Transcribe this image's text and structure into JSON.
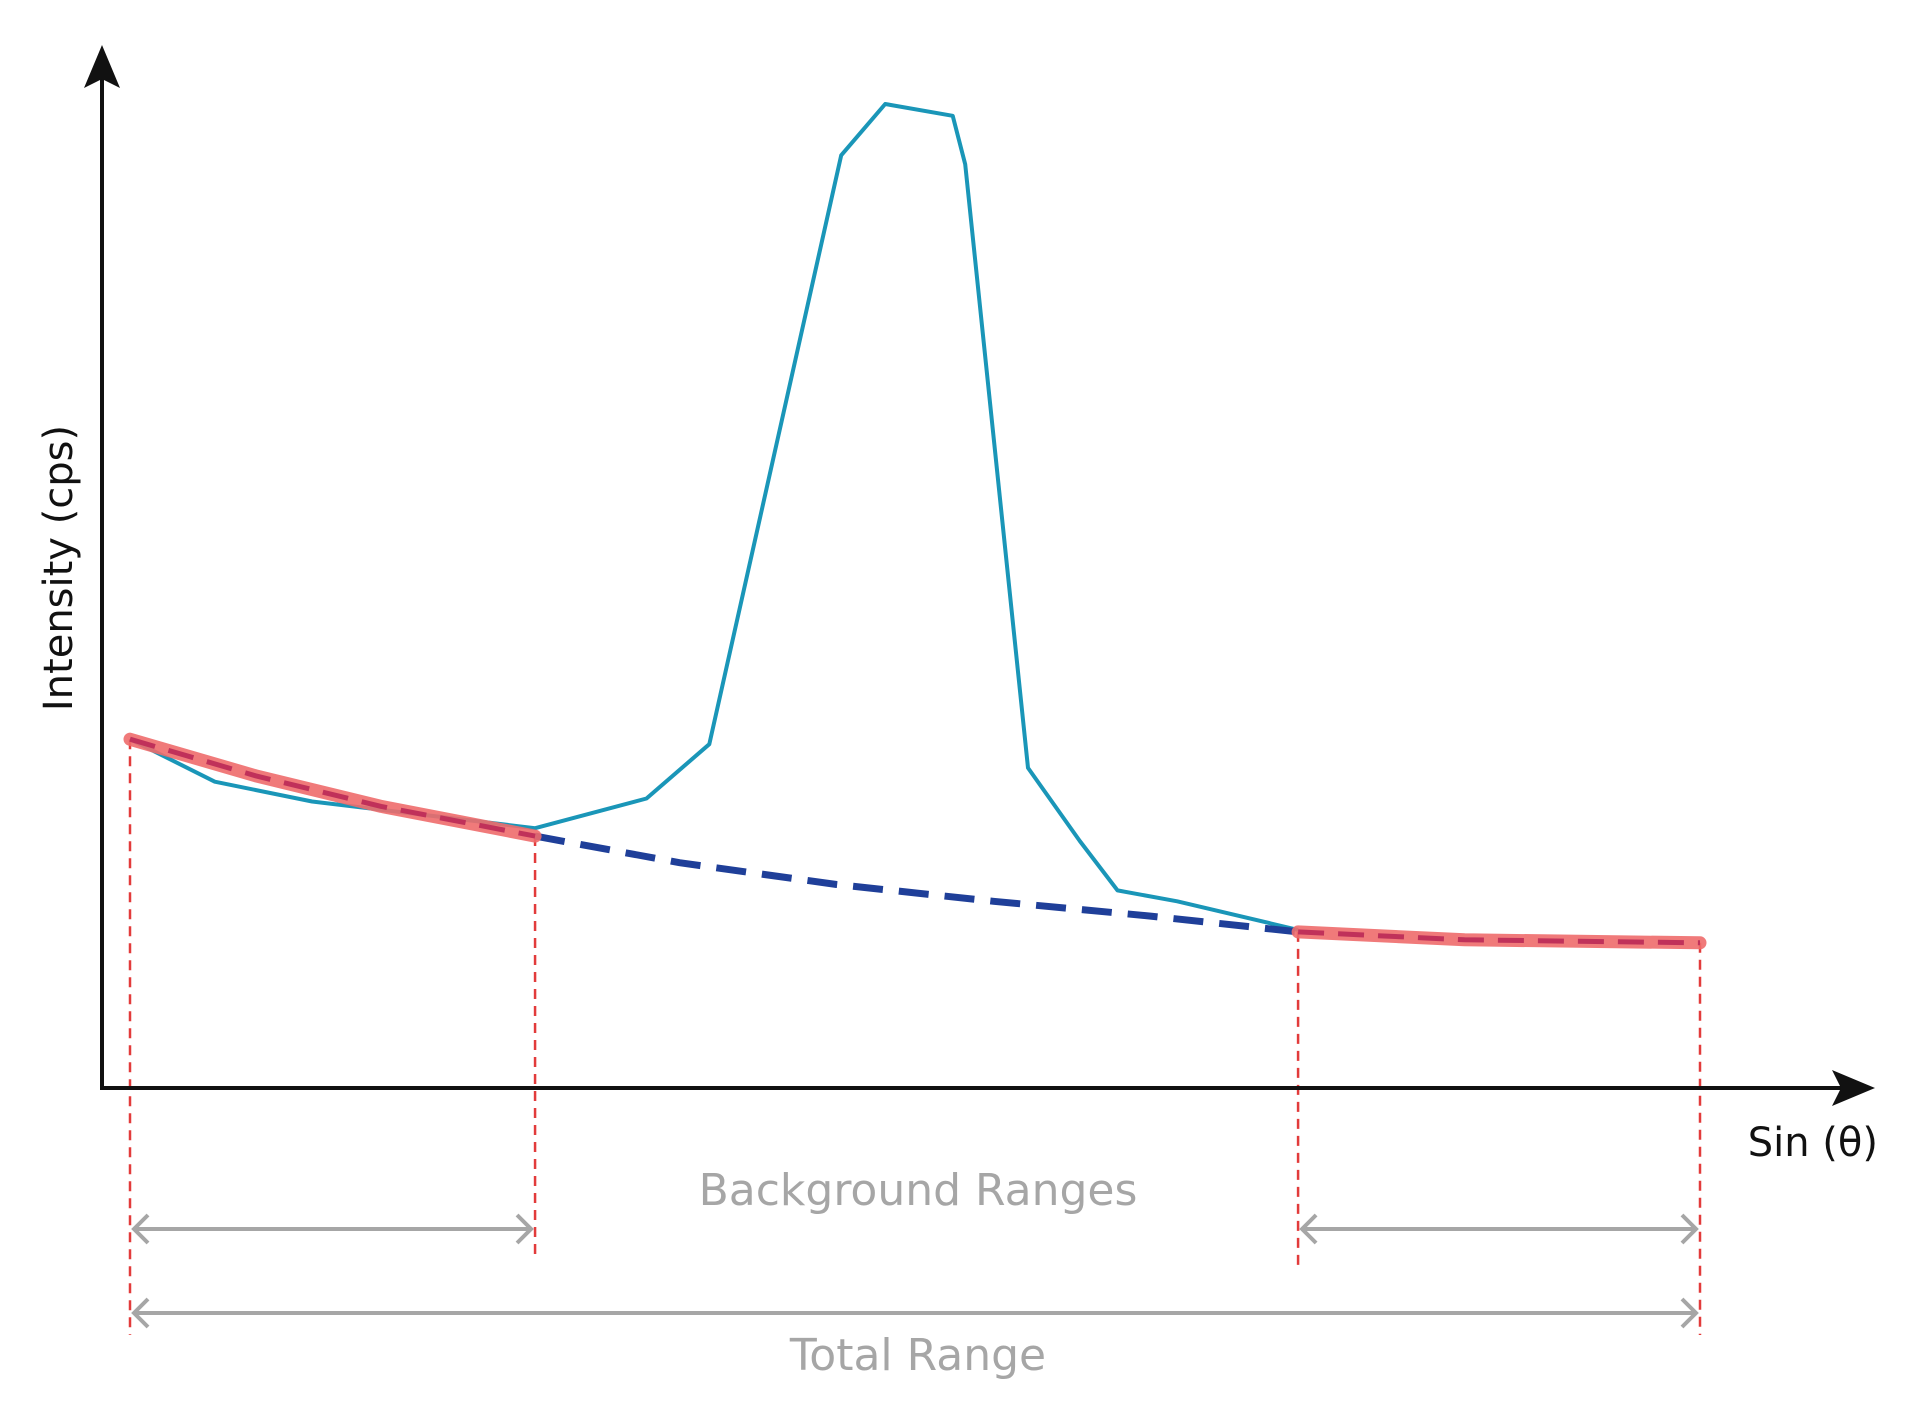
{
  "labels": {
    "y_axis": "Intensity (cps)",
    "x_axis": "Sin (θ)",
    "background_ranges": "Background Ranges",
    "total_range": "Total Range"
  },
  "colors": {
    "axis": "#111111",
    "spectrum": "#1a96b8",
    "background_fit": "#ee6b6b",
    "background_dash": "#c0315a",
    "interpolated": "#1f3f99",
    "range_marker": "#e23b3b",
    "range_arrow": "#a6a6a6"
  },
  "chart_data": {
    "type": "line",
    "axes": {
      "x_ticks": "none",
      "y_ticks": "none"
    },
    "ranges": {
      "x_min": 0,
      "x_max": 100,
      "background_left": [
        0,
        25.8
      ],
      "background_right": [
        74.4,
        100
      ],
      "total": [
        0,
        100
      ]
    },
    "series": [
      {
        "role": "spectrum",
        "x": [
          0,
          5.4,
          11.6,
          25.8,
          32.9,
          36.9,
          45.3,
          48.1,
          52.4,
          53.2,
          57.2,
          60.5,
          62.9,
          66.7,
          74.4
        ],
        "y": [
          35.3,
          31.0,
          29.0,
          26.3,
          29.3,
          34.8,
          94.4,
          99.6,
          98.4,
          93.5,
          32.4,
          25.0,
          20.0,
          18.9,
          16.0
        ]
      },
      {
        "role": "background-left",
        "x": [
          0,
          8,
          16,
          25.8
        ],
        "y": [
          35.3,
          31.6,
          28.5,
          25.5
        ]
      },
      {
        "role": "background-interpolated",
        "x": [
          25.8,
          35,
          45,
          55,
          65,
          74.4
        ],
        "y": [
          25.5,
          22.8,
          20.6,
          18.9,
          17.4,
          15.8
        ]
      },
      {
        "role": "background-right",
        "x": [
          74.4,
          85,
          100
        ],
        "y": [
          15.8,
          15.0,
          14.7
        ]
      }
    ]
  }
}
